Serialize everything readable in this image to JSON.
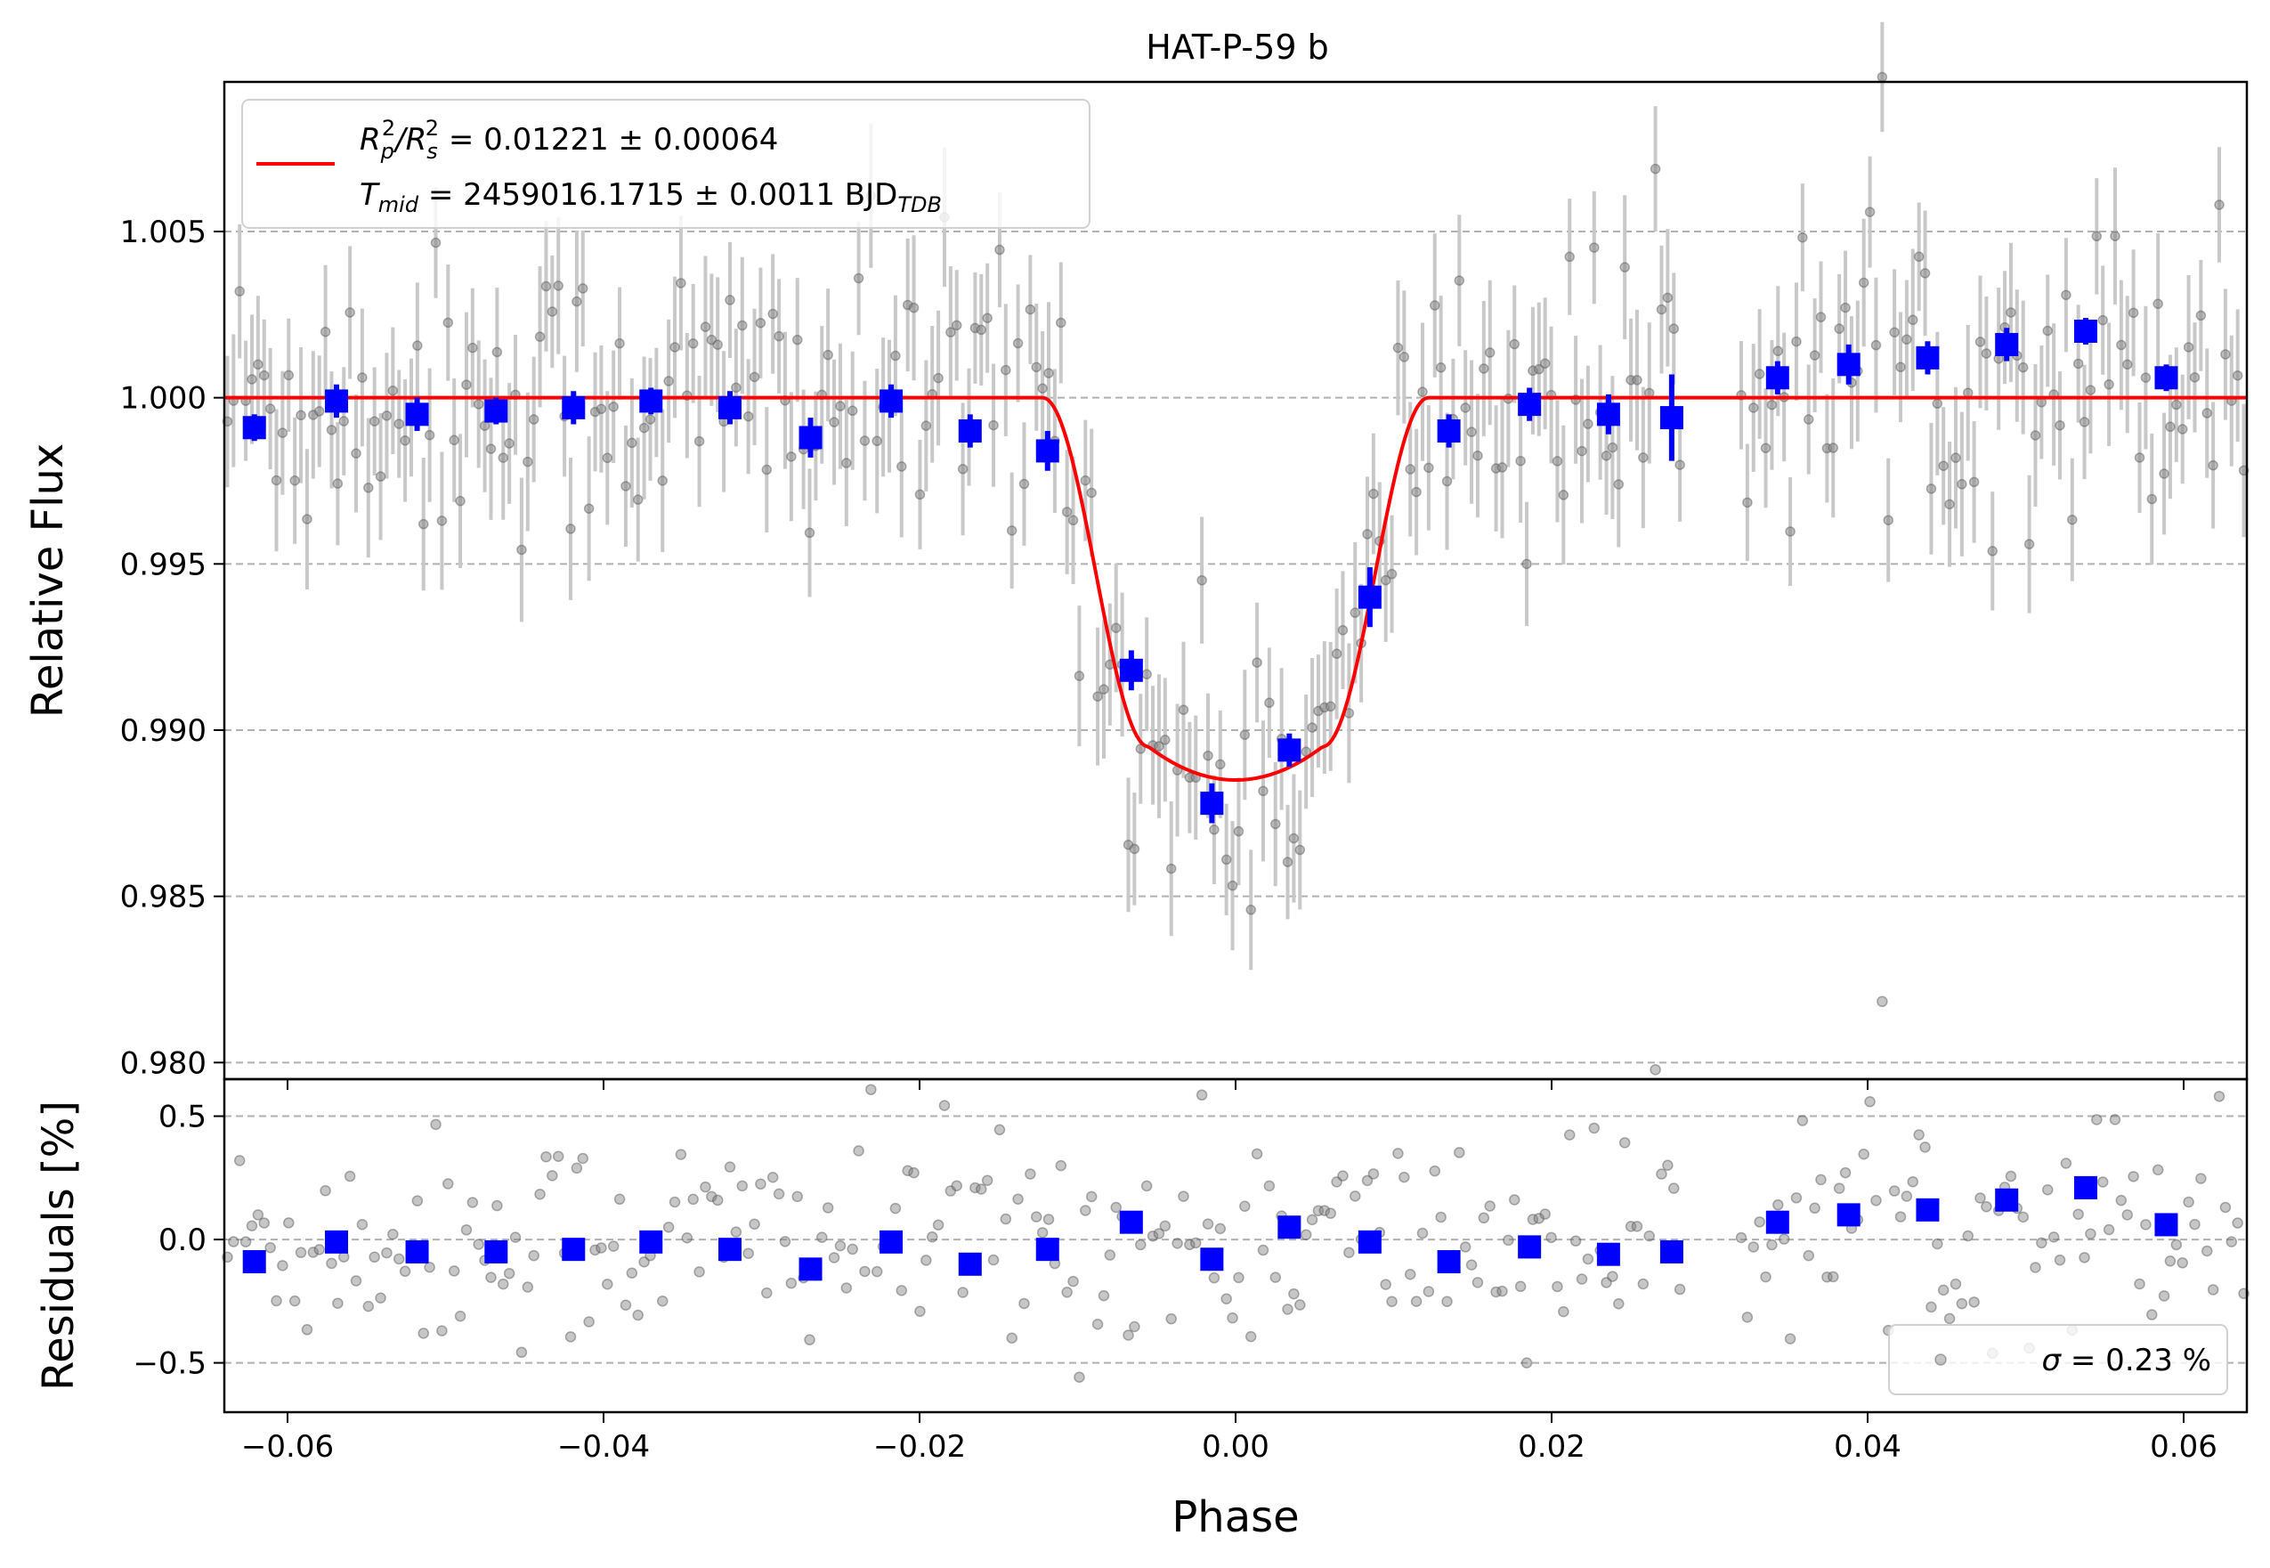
{
  "chart_data": [
    {
      "type": "scatter",
      "panel": "transit",
      "title": "HAT-P-59 b",
      "xlabel": "",
      "ylabel": "Relative Flux",
      "xlim": [
        -0.064,
        0.064
      ],
      "ylim": [
        0.9795,
        1.0095
      ],
      "xticks": [
        -0.06,
        -0.04,
        -0.02,
        0.0,
        0.02,
        0.04,
        0.06
      ],
      "xtick_labels": [
        "−0.06",
        "−0.04",
        "−0.02",
        "0.00",
        "0.02",
        "0.04",
        "0.06"
      ],
      "yticks": [
        0.98,
        0.985,
        0.99,
        0.995,
        1.0,
        1.005
      ],
      "ytick_labels": [
        "0.980",
        "0.985",
        "0.990",
        "0.995",
        "1.000",
        "1.005"
      ],
      "grid": "horizontal dashed",
      "legend_position": "upper-left",
      "legend": {
        "line1": {
          "sym": "R",
          "sub1": "p",
          "sup1": "2",
          "slash": "/R",
          "sub2": "s",
          "sup2": "2",
          "rest": " = 0.01221 ± 0.00064"
        },
        "line2": {
          "sym": "T",
          "sub": "mid",
          "rest": " = 2459016.1715 ± 0.0011 BJD",
          "sub2": "TDB"
        }
      },
      "model": {
        "name": "transit model",
        "color": "#ff0000",
        "baseline": 1.0,
        "depth_center": 0.9885,
        "bottom_edge": 0.9895,
        "t1": -0.0122,
        "t2": -0.0055,
        "t3": 0.0055,
        "t4": 0.0122
      },
      "raw_points": {
        "name": "raw flux",
        "color": "#808080",
        "errorbar_color": "#c8c8c8",
        "typical_error": 0.0019,
        "count": 330,
        "x_range": [
          -0.064,
          0.064
        ],
        "out_of_transit_scatter": 0.0023
      },
      "binned": {
        "name": "binned flux",
        "color": "#0000ff",
        "x": [
          -0.0621,
          -0.0569,
          -0.0518,
          -0.0468,
          -0.0419,
          -0.037,
          -0.032,
          -0.0269,
          -0.0218,
          -0.0168,
          -0.0119,
          -0.0066,
          -0.0015,
          0.0034,
          0.0085,
          0.0135,
          0.0186,
          0.0236,
          0.0276,
          0.0343,
          0.0388,
          0.0438,
          0.0488,
          0.0538,
          0.0589
        ],
        "y": [
          0.9991,
          0.9999,
          0.9995,
          0.9996,
          0.9997,
          0.9999,
          0.9997,
          0.9988,
          0.9999,
          0.999,
          0.9984,
          0.9918,
          0.9878,
          0.9894,
          0.994,
          0.999,
          0.9998,
          0.9995,
          0.9994,
          1.0006,
          1.001,
          1.0012,
          1.0016,
          1.002,
          1.0006
        ],
        "err": [
          0.0004,
          0.0005,
          0.0005,
          0.0004,
          0.0005,
          0.0004,
          0.0005,
          0.0006,
          0.0005,
          0.0005,
          0.0006,
          0.0006,
          0.0006,
          0.0005,
          0.0009,
          0.0005,
          0.0005,
          0.0006,
          0.0013,
          0.0005,
          0.0006,
          0.0005,
          0.0005,
          0.0004,
          0.0004
        ]
      }
    },
    {
      "type": "scatter",
      "panel": "residuals",
      "xlabel": "Phase",
      "ylabel": "Residuals [%]",
      "xlim": [
        -0.064,
        0.064
      ],
      "ylim": [
        -0.7,
        0.65
      ],
      "xticks": [
        -0.06,
        -0.04,
        -0.02,
        0.0,
        0.02,
        0.04,
        0.06
      ],
      "xtick_labels": [
        "−0.06",
        "−0.04",
        "−0.02",
        "0.00",
        "0.02",
        "0.04",
        "0.06"
      ],
      "yticks": [
        -0.5,
        0.0,
        0.5
      ],
      "ytick_labels": [
        "−0.5",
        "0.0",
        "0.5"
      ],
      "grid": "horizontal dashed",
      "legend_position": "lower-right",
      "legend": {
        "sym": "σ",
        "rest": " = 0.23 %"
      },
      "raw_points": {
        "name": "raw residuals",
        "color": "#808080",
        "scatter": 0.23,
        "count": 330
      },
      "binned": {
        "name": "binned residuals",
        "color": "#0000ff",
        "x": [
          -0.0621,
          -0.0569,
          -0.0518,
          -0.0468,
          -0.0419,
          -0.037,
          -0.032,
          -0.0269,
          -0.0218,
          -0.0168,
          -0.0119,
          -0.0066,
          -0.0015,
          0.0034,
          0.0085,
          0.0135,
          0.0186,
          0.0236,
          0.0276,
          0.0343,
          0.0388,
          0.0438,
          0.0488,
          0.0538,
          0.0589
        ],
        "y": [
          -0.09,
          -0.01,
          -0.05,
          -0.05,
          -0.04,
          -0.01,
          -0.04,
          -0.12,
          -0.01,
          -0.1,
          -0.04,
          0.07,
          -0.08,
          0.05,
          -0.01,
          -0.09,
          -0.03,
          -0.06,
          -0.05,
          0.07,
          0.1,
          0.12,
          0.16,
          0.21,
          0.06
        ]
      }
    }
  ]
}
